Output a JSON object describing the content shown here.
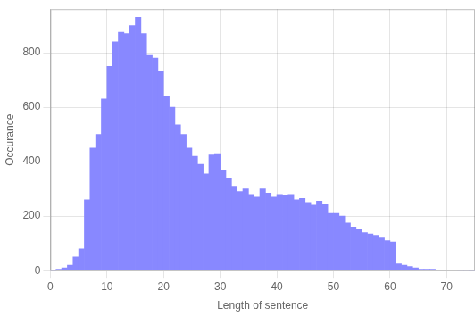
{
  "chart_data": {
    "type": "histogram",
    "xlabel": "Length of sentence",
    "ylabel": "Occurance",
    "bins": [
      0,
      1,
      2,
      3,
      4,
      5,
      6,
      7,
      8,
      9,
      10,
      11,
      12,
      13,
      14,
      15,
      16,
      17,
      18,
      19,
      20,
      21,
      22,
      23,
      24,
      25,
      26,
      27,
      28,
      29,
      30,
      31,
      32,
      33,
      34,
      35,
      36,
      37,
      38,
      39,
      40,
      41,
      42,
      43,
      44,
      45,
      46,
      47,
      48,
      49,
      50,
      51,
      52,
      53,
      54,
      55,
      56,
      57,
      58,
      59,
      60,
      61,
      62,
      63,
      64,
      65,
      66,
      67,
      68,
      69,
      70,
      71,
      72,
      73,
      74,
      75
    ],
    "values": [
      0,
      5,
      10,
      20,
      50,
      80,
      260,
      450,
      500,
      630,
      750,
      840,
      875,
      870,
      900,
      930,
      870,
      790,
      780,
      730,
      640,
      600,
      535,
      500,
      450,
      420,
      390,
      355,
      425,
      430,
      370,
      340,
      310,
      290,
      300,
      280,
      270,
      300,
      285,
      270,
      280,
      275,
      280,
      260,
      265,
      250,
      240,
      255,
      245,
      210,
      210,
      200,
      175,
      160,
      150,
      140,
      135,
      130,
      120,
      110,
      105,
      25,
      20,
      15,
      10,
      5,
      5,
      5,
      3,
      3,
      2,
      2,
      1,
      1,
      0
    ],
    "color": "#8888ff",
    "xlim": [
      0,
      75
    ],
    "ylim": [
      0,
      960
    ],
    "xticks": [
      0,
      10,
      20,
      30,
      40,
      50,
      60,
      70
    ],
    "yticks": [
      0,
      200,
      400,
      600,
      800
    ],
    "grid": true
  }
}
